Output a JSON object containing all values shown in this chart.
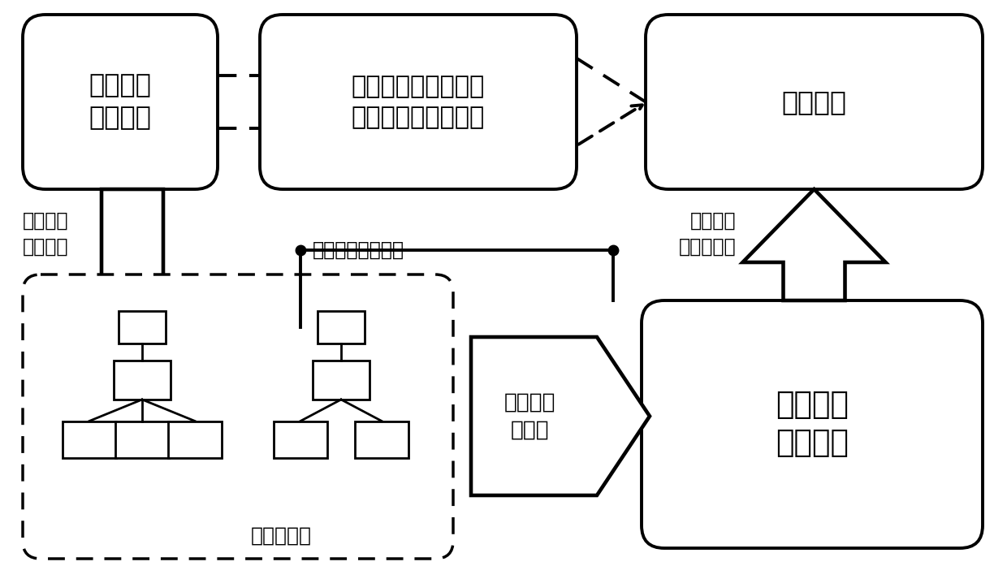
{
  "bg_color": "#ffffff",
  "text_color": "#000000",
  "box1_text": "原始稠密\n神经网络",
  "box2_text": "基于稀疏网络迁移的\n植株病虫害识别方法",
  "box3_text": "目标任务",
  "box4_text": "稀疏网络\n深度迁移",
  "box5_text": "筛选最优\n子网络",
  "dashed_box_text": "稀疏子网络",
  "label1": "稀疏网络\n剪枝算法",
  "label2": "稀疏深度迁移学习",
  "label3": "微调网络\n最优化表现",
  "fig_w": 12.4,
  "fig_h": 7.13,
  "dpi": 100
}
